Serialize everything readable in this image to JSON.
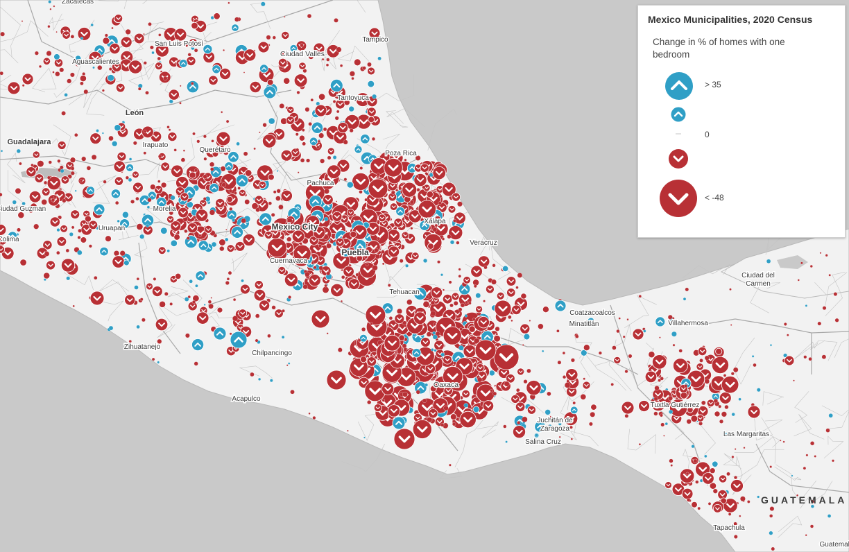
{
  "legend": {
    "title": "Mexico Municipalities, 2020 Census",
    "subtitle": "Change in % of homes with one bedroom",
    "items": [
      {
        "label": "> 35",
        "direction": "up",
        "color": "#2f9fc6"
      },
      {
        "label": "",
        "direction": "up",
        "color": "#2f9fc6"
      },
      {
        "label": "0",
        "direction": "none",
        "color": "#bbbbbb"
      },
      {
        "label": "",
        "direction": "down",
        "color": "#b83035"
      },
      {
        "label": "< -48",
        "direction": "down",
        "color": "#b83035"
      }
    ]
  },
  "map": {
    "colors": {
      "land": "#f2f2f2",
      "water": "#c9c9c9",
      "lake": "#bdbdbd",
      "border": "#a9a9a9",
      "increase": "#2f9fc6",
      "decrease": "#b83035"
    },
    "cities": [
      {
        "name": "Zacatecas"
      },
      {
        "name": "San Luis Potosí"
      },
      {
        "name": "Ciudad Valles"
      },
      {
        "name": "Tampico"
      },
      {
        "name": "Aguascalientes"
      },
      {
        "name": "Tantoyuca"
      },
      {
        "name": "León",
        "bold": true
      },
      {
        "name": "Guadalajara",
        "bold": true
      },
      {
        "name": "Irapuato"
      },
      {
        "name": "Querétaro"
      },
      {
        "name": "Poza Rica"
      },
      {
        "name": "Pachuca"
      },
      {
        "name": "Ciudad Guzman"
      },
      {
        "name": "Morelia"
      },
      {
        "name": "Mexico City",
        "bold": true
      },
      {
        "name": "Xalapa"
      },
      {
        "name": "Uruapan"
      },
      {
        "name": "Colima"
      },
      {
        "name": "Puebla",
        "bold": true
      },
      {
        "name": "Veracruz"
      },
      {
        "name": "Cuernavaca"
      },
      {
        "name": "Tehuacan"
      },
      {
        "name": "Ciudad del Carmen"
      },
      {
        "name": "Coatzacoalcos"
      },
      {
        "name": "Minatitlán"
      },
      {
        "name": "Villahermosa"
      },
      {
        "name": "Zihuatanejo"
      },
      {
        "name": "Chilpancingo"
      },
      {
        "name": "Oaxaca"
      },
      {
        "name": "Tuxtla Gutiérrez"
      },
      {
        "name": "Acapulco"
      },
      {
        "name": "Juchitán de Zaragoza"
      },
      {
        "name": "Salina Cruz"
      },
      {
        "name": "Las Margaritas"
      },
      {
        "name": "Tapachula"
      },
      {
        "name": "Guatemala"
      }
    ],
    "countries": [
      {
        "name": "GUATEMALA"
      }
    ]
  }
}
